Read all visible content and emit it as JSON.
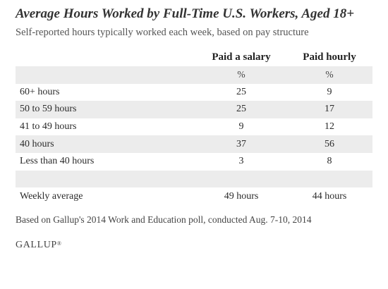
{
  "title": "Average Hours Worked by Full-Time U.S. Workers, Aged 18+",
  "subtitle": "Self-reported hours typically worked each week, based on pay structure",
  "table": {
    "columns": [
      "Paid a salary",
      "Paid hourly"
    ],
    "unit_row": [
      "%",
      "%"
    ],
    "rows": [
      {
        "label": "60+ hours",
        "salary": "25",
        "hourly": "9"
      },
      {
        "label": "50 to 59 hours",
        "salary": "25",
        "hourly": "17"
      },
      {
        "label": "41 to 49 hours",
        "salary": "9",
        "hourly": "12"
      },
      {
        "label": "40 hours",
        "salary": "37",
        "hourly": "56"
      },
      {
        "label": "Less than 40 hours",
        "salary": "3",
        "hourly": "8"
      }
    ],
    "average": {
      "label": "Weekly average",
      "salary": "49 hours",
      "hourly": "44 hours"
    }
  },
  "note": "Based on Gallup's 2014 Work and Education poll, conducted Aug. 7-10, 2014",
  "logo": {
    "text": "GALLUP",
    "mark": "®"
  },
  "colors": {
    "shade": "#ececec",
    "text": "#2b2b2b"
  }
}
